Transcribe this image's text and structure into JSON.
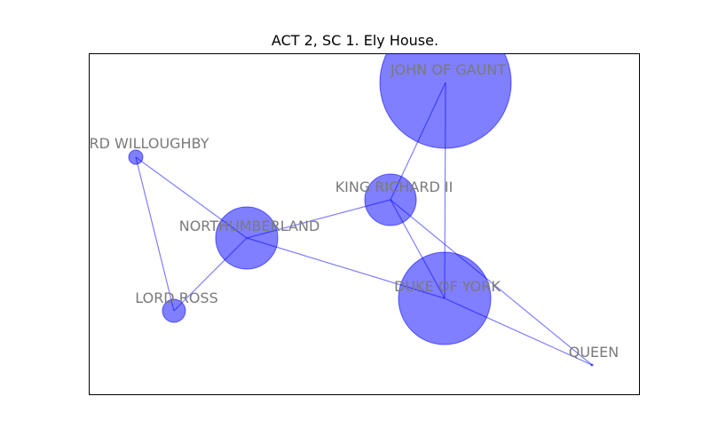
{
  "title": "ACT 2, SC 1. Ely House.",
  "colors": {
    "node_fill": "#0000ff",
    "edge_stroke": "#0000ff",
    "label_text": "#7a7a7a",
    "frame": "#000000"
  },
  "nodes": [
    {
      "id": "john-of-gaunt",
      "label": "JOHN OF GAUNT",
      "size_rank": 1
    },
    {
      "id": "duke-of-york",
      "label": "DUKE OF YORK",
      "size_rank": 2
    },
    {
      "id": "northumberland",
      "label": "NORTHUMBERLAND",
      "size_rank": 3
    },
    {
      "id": "king-richard-ii",
      "label": "KING RICHARD II",
      "size_rank": 4
    },
    {
      "id": "lord-ross",
      "label": "LORD ROSS",
      "size_rank": 5
    },
    {
      "id": "lord-willoughby",
      "label": "RD WILLOUGHBY",
      "size_rank": 6
    },
    {
      "id": "queen",
      "label": "QUEEN",
      "size_rank": 7
    }
  ],
  "edges": [
    [
      "john-of-gaunt",
      "king-richard-ii"
    ],
    [
      "john-of-gaunt",
      "duke-of-york"
    ],
    [
      "king-richard-ii",
      "northumberland"
    ],
    [
      "king-richard-ii",
      "duke-of-york"
    ],
    [
      "king-richard-ii",
      "queen"
    ],
    [
      "northumberland",
      "lord-willoughby"
    ],
    [
      "northumberland",
      "lord-ross"
    ],
    [
      "northumberland",
      "duke-of-york"
    ],
    [
      "lord-willoughby",
      "lord-ross"
    ],
    [
      "duke-of-york",
      "queen"
    ]
  ]
}
